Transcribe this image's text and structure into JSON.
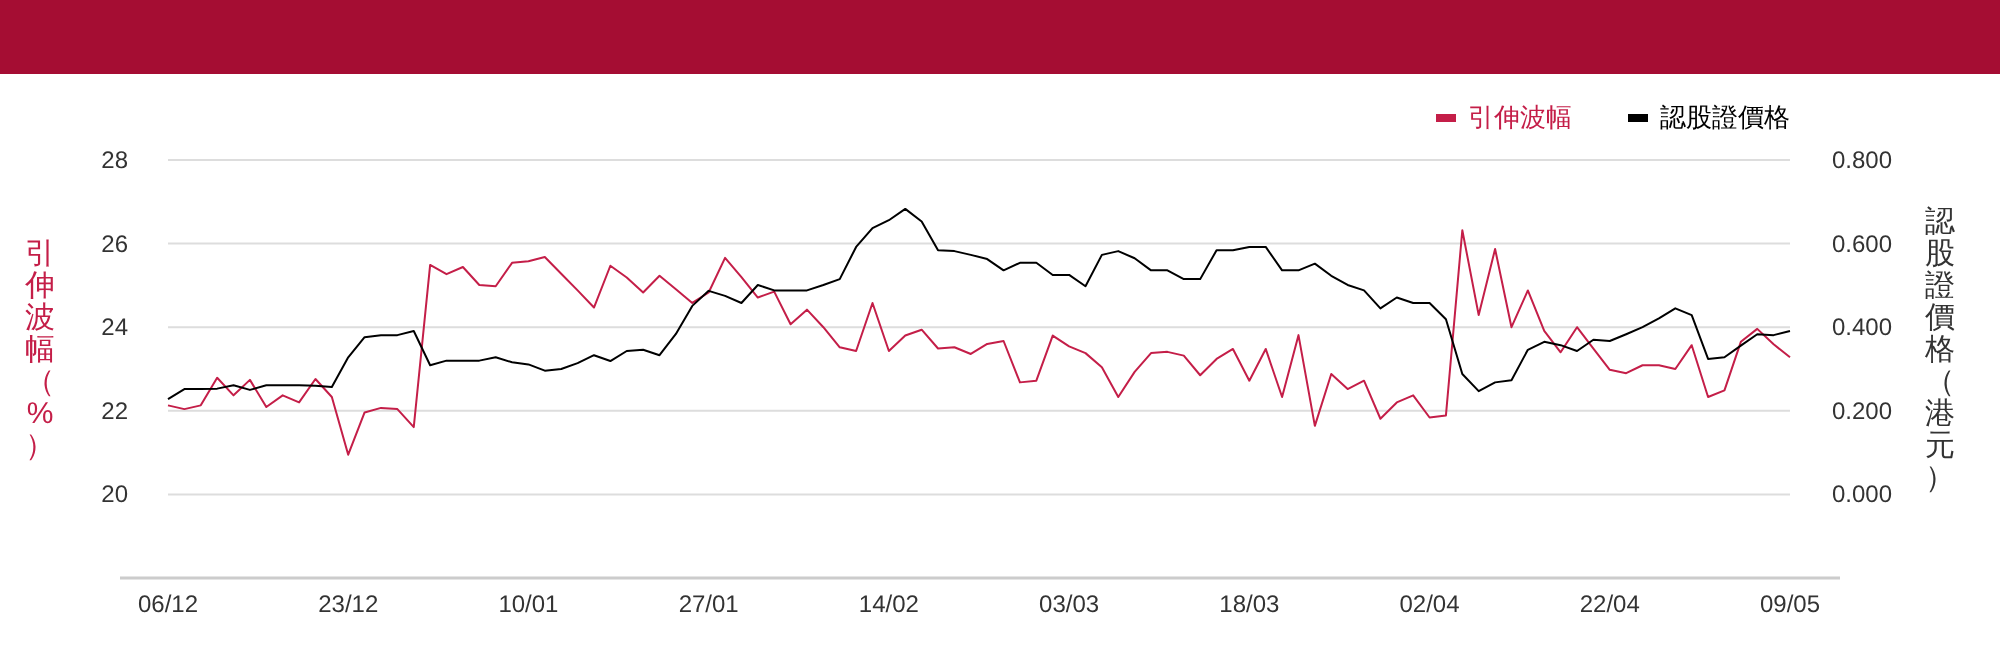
{
  "chart_data": {
    "type": "line",
    "categories": [
      "06/12",
      null,
      null,
      null,
      null,
      null,
      null,
      null,
      null,
      null,
      null,
      "23/12",
      null,
      null,
      null,
      null,
      null,
      null,
      null,
      null,
      null,
      null,
      "10/01",
      null,
      null,
      null,
      null,
      null,
      null,
      null,
      null,
      null,
      null,
      "27/01",
      null,
      null,
      null,
      null,
      null,
      null,
      null,
      null,
      null,
      null,
      "14/02",
      null,
      null,
      null,
      null,
      null,
      null,
      null,
      null,
      null,
      null,
      "03/03",
      null,
      null,
      null,
      null,
      null,
      null,
      null,
      null,
      null,
      null,
      "18/03",
      null,
      null,
      null,
      null,
      null,
      null,
      null,
      null,
      null,
      null,
      "02/04",
      null,
      null,
      null,
      null,
      null,
      null,
      null,
      null,
      null,
      null,
      "22/04",
      null,
      null,
      null,
      null,
      null,
      null,
      null,
      null,
      null,
      null,
      "09/05"
    ],
    "series": [
      {
        "name": "引伸波幅",
        "color": "#c41e48",
        "values": [
          22.13,
          22.04,
          22.13,
          22.79,
          22.37,
          22.74,
          22.09,
          22.37,
          22.2,
          22.76,
          22.33,
          20.95,
          21.96,
          22.07,
          22.04,
          21.61,
          25.49,
          25.27,
          25.44,
          25.01,
          24.98,
          25.54,
          25.58,
          25.68,
          25.28,
          24.88,
          24.47,
          25.47,
          25.19,
          24.83,
          25.23,
          24.91,
          24.58,
          24.83,
          25.66,
          25.2,
          24.71,
          24.85,
          24.07,
          24.42,
          24.0,
          23.52,
          23.43,
          24.58,
          23.43,
          23.8,
          23.94,
          23.49,
          23.52,
          23.36,
          23.6,
          23.67,
          22.68,
          22.72,
          23.8,
          23.54,
          23.38,
          23.04,
          22.33,
          22.93,
          23.38,
          23.41,
          23.32,
          22.85,
          23.24,
          23.48,
          22.72,
          23.48,
          22.33,
          23.81,
          21.64,
          22.88,
          22.52,
          22.72,
          21.81,
          22.2,
          22.37,
          21.84,
          21.89,
          26.32,
          24.29,
          25.87,
          24.0,
          24.88,
          23.91,
          23.4,
          24.0,
          23.49,
          22.98,
          22.9,
          23.09,
          23.09,
          23.0,
          23.57,
          22.33,
          22.49,
          23.65,
          23.96,
          23.59,
          23.28
        ]
      },
      {
        "name": "認股證價格",
        "color": "#000000",
        "axis": "y2",
        "values": [
          0.228,
          0.252,
          0.252,
          0.253,
          0.261,
          0.25,
          0.261,
          0.261,
          0.261,
          0.26,
          0.257,
          0.328,
          0.376,
          0.381,
          0.381,
          0.391,
          0.309,
          0.32,
          0.32,
          0.32,
          0.328,
          0.316,
          0.311,
          0.296,
          0.3,
          0.314,
          0.333,
          0.319,
          0.343,
          0.346,
          0.333,
          0.384,
          0.451,
          0.487,
          0.475,
          0.458,
          0.501,
          0.488,
          0.488,
          0.488,
          0.501,
          0.515,
          0.592,
          0.637,
          0.656,
          0.683,
          0.653,
          0.584,
          0.582,
          0.573,
          0.563,
          0.536,
          0.554,
          0.554,
          0.525,
          0.525,
          0.498,
          0.573,
          0.582,
          0.565,
          0.536,
          0.536,
          0.515,
          0.515,
          0.584,
          0.584,
          0.592,
          0.592,
          0.536,
          0.536,
          0.552,
          0.523,
          0.501,
          0.488,
          0.445,
          0.471,
          0.458,
          0.458,
          0.419,
          0.288,
          0.247,
          0.268,
          0.273,
          0.346,
          0.365,
          0.357,
          0.343,
          0.37,
          0.367,
          0.383,
          0.4,
          0.421,
          0.445,
          0.429,
          0.324,
          0.328,
          0.356,
          0.383,
          0.381,
          0.391
        ]
      }
    ],
    "ylabel": "引伸波幅（%）",
    "y2label": "認股證價格（港元）",
    "ylim": [
      18,
      28
    ],
    "yticks": [
      20,
      22,
      24,
      26,
      28
    ],
    "y2lim": [
      -0.2,
      0.8
    ],
    "y2ticks": [
      {
        "value": 0,
        "label": "0.000"
      },
      {
        "value": 0.2,
        "label": "0.200"
      },
      {
        "value": 0.4,
        "label": "0.400"
      },
      {
        "value": 0.6,
        "label": "0.600"
      },
      {
        "value": 0.8,
        "label": "0.800"
      }
    ],
    "grid": "y",
    "legend": "top right"
  }
}
